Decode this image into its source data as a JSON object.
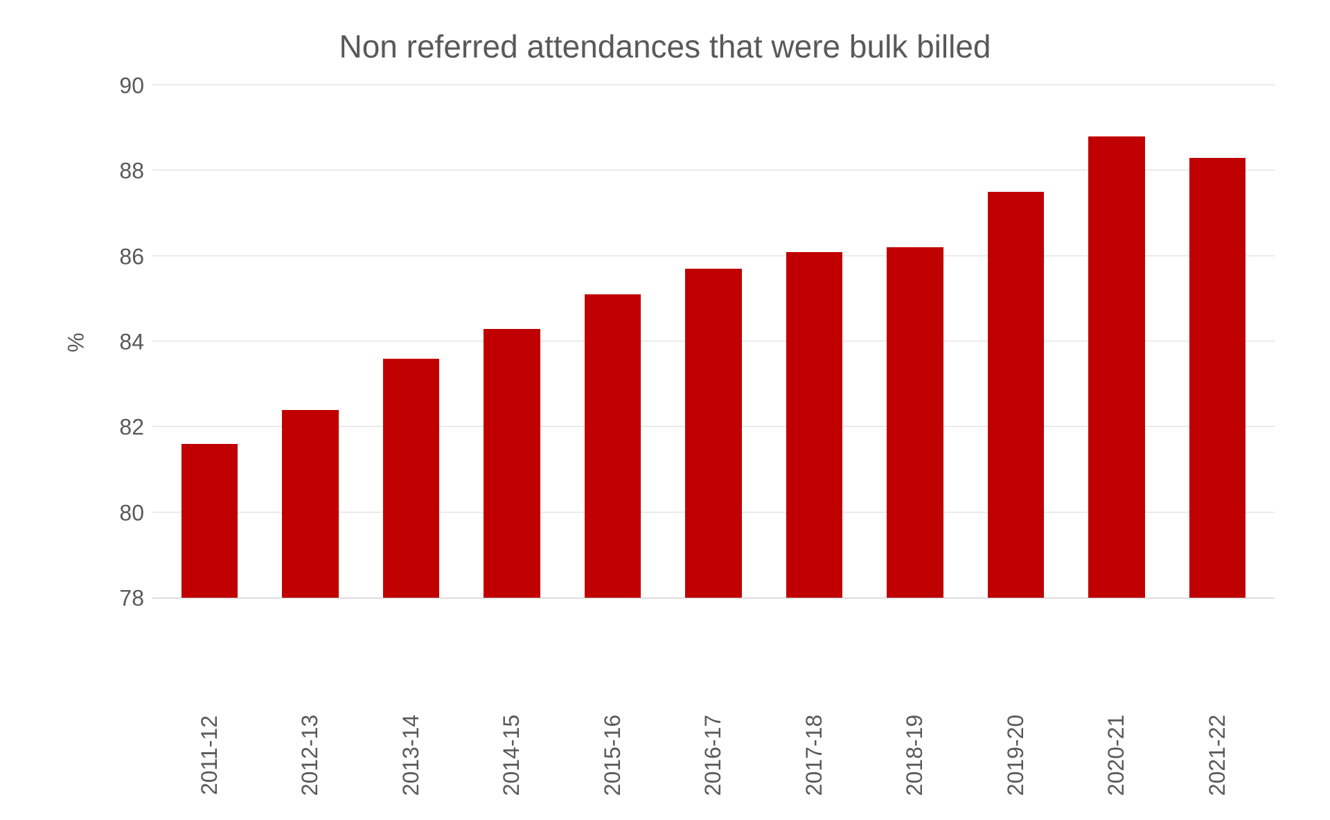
{
  "chart": {
    "type": "bar",
    "title": "Non referred attendances that were bulk billed",
    "title_fontsize": 46,
    "title_color": "#595959",
    "ylabel": "%",
    "ylabel_fontsize": 32,
    "ylabel_color": "#595959",
    "ylim": [
      78,
      90
    ],
    "ytick_step": 2,
    "yticks": [
      78,
      80,
      82,
      84,
      86,
      88,
      90
    ],
    "tick_fontsize": 32,
    "tick_color": "#595959",
    "categories": [
      "2011-12",
      "2012-13",
      "2013-14",
      "2014-15",
      "2015-16",
      "2016-17",
      "2017-18",
      "2018-19",
      "2019-20",
      "2020-21",
      "2021-22"
    ],
    "values": [
      81.6,
      82.4,
      83.6,
      84.3,
      85.1,
      85.7,
      86.1,
      86.2,
      87.5,
      88.8,
      88.3
    ],
    "bar_color": "#c00000",
    "bar_width": 0.56,
    "background_color": "#ffffff",
    "grid_color": "#d9d9d9",
    "axis_line_color": "#bfbfbf",
    "xlabel_rotation": -90,
    "xlabel_fontsize": 32
  }
}
